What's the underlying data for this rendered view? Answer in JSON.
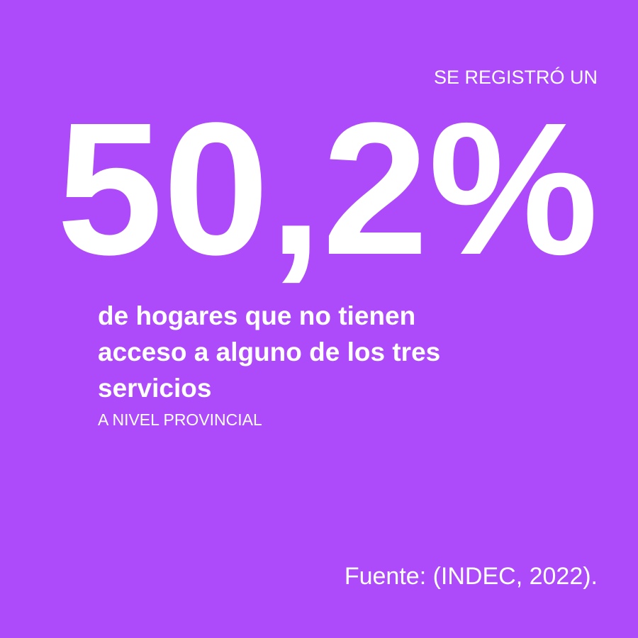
{
  "header": {
    "kicker": "SE REGISTRÓ UN",
    "stat": "50,2%"
  },
  "description": {
    "lines": [
      "de hogares que no tienen",
      "acceso a alguno de los tres",
      "servicios"
    ],
    "note": "A NIVEL PROVINCIAL"
  },
  "footer": {
    "source": "Fuente: (INDEC, 2022)."
  }
}
